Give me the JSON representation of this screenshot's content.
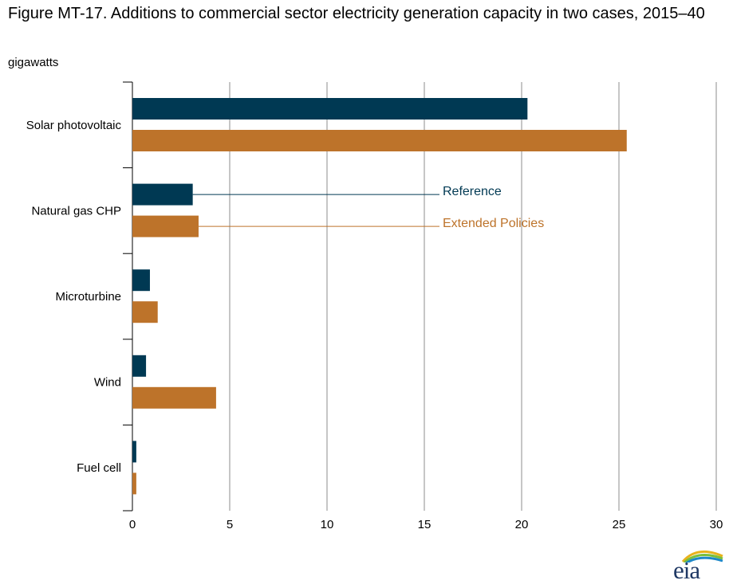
{
  "title": "Figure MT-17. Additions to commercial sector electricity generation capacity in two cases, 2015–40",
  "unit_label": "gigawatts",
  "logo": {
    "text": "eia"
  },
  "colors": {
    "reference": "#003953",
    "extended": "#bd732a",
    "grid": "#8c8c8c"
  },
  "chart_data": {
    "type": "bar",
    "orientation": "horizontal",
    "categories": [
      "Solar photovoltaic",
      "Natural gas CHP",
      "Microturbine",
      "Wind",
      "Fuel cell"
    ],
    "series": [
      {
        "name": "Reference",
        "values": [
          20.3,
          3.1,
          0.9,
          0.7,
          0.2
        ]
      },
      {
        "name": "Extended Policies",
        "values": [
          25.4,
          3.4,
          1.3,
          4.3,
          0.2
        ]
      }
    ],
    "xlim": [
      0,
      30
    ],
    "xticks": [
      "0",
      "5",
      "10",
      "15",
      "20",
      "25",
      "30"
    ],
    "grid": true,
    "legend": "inline labels"
  }
}
